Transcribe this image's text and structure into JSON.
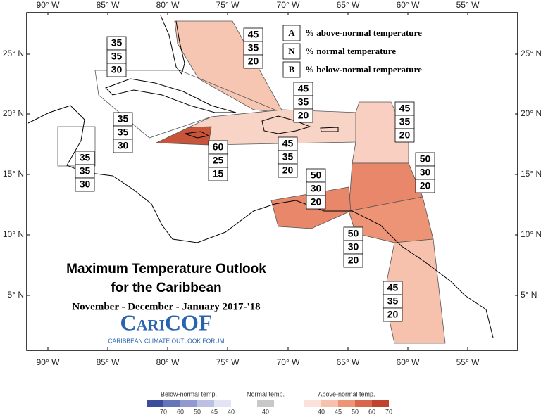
{
  "axes": {
    "lon_labels": [
      "90° W",
      "85° W",
      "80° W",
      "75° W",
      "70° W",
      "65° W",
      "60° W",
      "55° W"
    ],
    "lat_labels": [
      "25° N",
      "20° N",
      "15° N",
      "10° N",
      "5° N"
    ]
  },
  "regions": [
    {
      "values": [
        45,
        35,
        20
      ]
    },
    {
      "values": [
        35,
        35,
        30
      ]
    },
    {
      "values": [
        35,
        35,
        30
      ]
    },
    {
      "values": [
        35,
        35,
        30
      ]
    },
    {
      "values": [
        60,
        25,
        15
      ]
    },
    {
      "values": [
        45,
        35,
        20
      ]
    },
    {
      "values": [
        45,
        35,
        20
      ]
    },
    {
      "values": [
        45,
        35,
        20
      ]
    },
    {
      "values": [
        50,
        30,
        20
      ]
    },
    {
      "values": [
        50,
        30,
        20
      ]
    },
    {
      "values": [
        50,
        30,
        20
      ]
    },
    {
      "values": [
        45,
        35,
        20
      ]
    }
  ],
  "key": [
    {
      "letter": "A",
      "text": "% above-normal temperature"
    },
    {
      "letter": "N",
      "text": "% normal temperature"
    },
    {
      "letter": "B",
      "text": "% below-normal temperature"
    }
  ],
  "title": {
    "line1": "Maximum Temperature Outlook",
    "line2": "for the Caribbean",
    "period": "November - December - January 2017-'18"
  },
  "logo": {
    "name": "CariCOF",
    "tagline": "CARIBBEAN CLIMATE OUTLOOK FORUM"
  },
  "color_legend": [
    {
      "label": "Below-normal temp.",
      "ticks": [
        70,
        60,
        50,
        45,
        40
      ],
      "colors": [
        "#3a4c9a",
        "#6674b8",
        "#9199cf",
        "#bcc0e2",
        "#e2e4f3"
      ]
    },
    {
      "label": "Normal temp.",
      "ticks": [
        40
      ],
      "colors": [
        "#c8c8c8"
      ]
    },
    {
      "label": "Above-normal temp.",
      "ticks": [
        40,
        45,
        50,
        60,
        70
      ],
      "colors": [
        "#fbe1d8",
        "#f6c2ad",
        "#ec9475",
        "#d8664a",
        "#c0432e"
      ]
    }
  ]
}
